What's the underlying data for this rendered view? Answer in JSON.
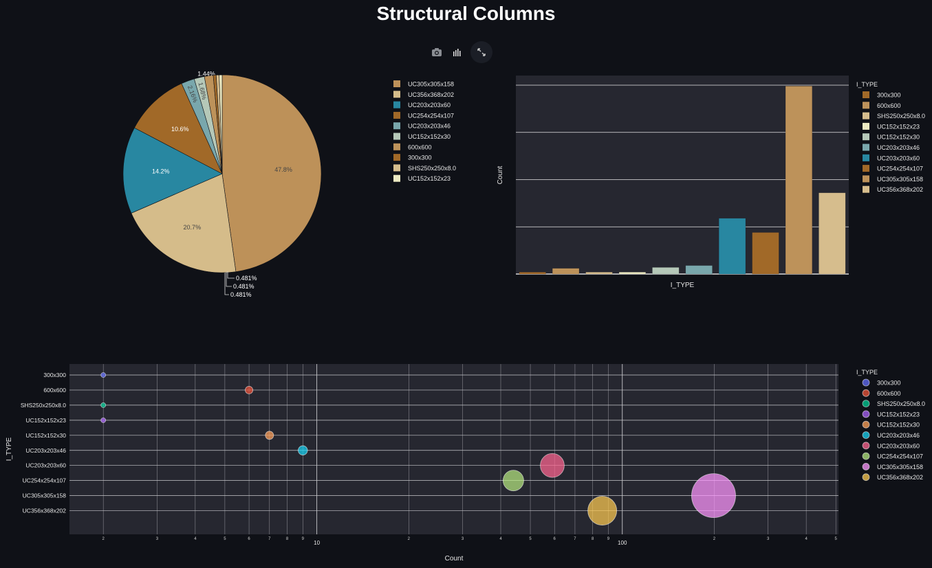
{
  "page": {
    "title": "Structural Columns"
  },
  "toolbar": {
    "icons": [
      "camera-icon",
      "bar-chart-icon",
      "fullscreen-icon"
    ]
  },
  "colors": {
    "background": "#0f1117",
    "plot_bg": "#262730",
    "grid": "#e6e6e6"
  },
  "chart_data": [
    {
      "type": "pie",
      "slices": [
        {
          "label": "UC305x305x158",
          "value": 47.8,
          "text": "47.8%",
          "color": "#bd9159"
        },
        {
          "label": "UC356x368x202",
          "value": 20.7,
          "text": "20.7%",
          "color": "#d5bc8a"
        },
        {
          "label": "UC203x203x60",
          "value": 14.2,
          "text": "14.2%",
          "color": "#2887a1"
        },
        {
          "label": "UC254x254x107",
          "value": 10.6,
          "text": "10.6%",
          "color": "#a16928"
        },
        {
          "label": "UC203x203x46",
          "value": 2.16,
          "text": "2.16%",
          "color": "#79a7ac"
        },
        {
          "label": "UC152x152x30",
          "value": 1.68,
          "text": "1.68%",
          "color": "#b5c8b8"
        },
        {
          "label": "600x600",
          "value": 1.44,
          "text": "1.44%",
          "color": "#bd925a"
        },
        {
          "label": "300x300",
          "value": 0.481,
          "text": "0.481%",
          "color": "#a16928"
        },
        {
          "label": "SHS250x250x8.0",
          "value": 0.481,
          "text": "0.481%",
          "color": "#d6bd8d"
        },
        {
          "label": "UC152x152x23",
          "value": 0.481,
          "text": "0.481%",
          "color": "#edeac2"
        }
      ],
      "legend": [
        "UC305x305x158",
        "UC356x368x202",
        "UC203x203x60",
        "UC254x254x107",
        "UC203x203x46",
        "UC152x152x30",
        "600x600",
        "300x300",
        "SHS250x250x8.0",
        "UC152x152x23"
      ]
    },
    {
      "type": "bar",
      "categories": [
        "300x300",
        "600x600",
        "SHS250x250x8.0",
        "UC152x152x23",
        "UC152x152x30",
        "UC203x203x46",
        "UC203x203x60",
        "UC254x254x107",
        "UC305x305x158",
        "UC356x368x202"
      ],
      "values": [
        2,
        6,
        2,
        2,
        7,
        9,
        59,
        44,
        199,
        86
      ],
      "colors": [
        "#a16928",
        "#bd925a",
        "#d6bd8d",
        "#edeac2",
        "#b5c8b8",
        "#79a7ac",
        "#2887a1",
        "#a16928",
        "#bd925a",
        "#d6bd8d"
      ],
      "xlabel": "I_TYPE",
      "ylabel": "Count",
      "legend_title": "I_TYPE",
      "ylim": [
        0,
        200
      ],
      "gridlines": [
        50,
        100,
        150,
        200
      ]
    },
    {
      "type": "scatter",
      "x_scale": "log",
      "xlabel": "Count",
      "ylabel": "I_TYPE",
      "legend_title": "I_TYPE",
      "xlim": [
        1.55,
        510
      ],
      "x_ticks_major": [
        {
          "v": 10,
          "label": "10"
        },
        {
          "v": 100,
          "label": "100"
        }
      ],
      "x_ticks_minor": [
        {
          "v": 2,
          "label": "2"
        },
        {
          "v": 3,
          "label": "3"
        },
        {
          "v": 4,
          "label": "4"
        },
        {
          "v": 5,
          "label": "5"
        },
        {
          "v": 6,
          "label": "6"
        },
        {
          "v": 7,
          "label": "7"
        },
        {
          "v": 8,
          "label": "8"
        },
        {
          "v": 9,
          "label": "9"
        },
        {
          "v": 20,
          "label": "2"
        },
        {
          "v": 30,
          "label": "3"
        },
        {
          "v": 40,
          "label": "4"
        },
        {
          "v": 50,
          "label": "5"
        },
        {
          "v": 60,
          "label": "6"
        },
        {
          "v": 70,
          "label": "7"
        },
        {
          "v": 80,
          "label": "8"
        },
        {
          "v": 90,
          "label": "9"
        },
        {
          "v": 200,
          "label": "2"
        },
        {
          "v": 300,
          "label": "3"
        },
        {
          "v": 400,
          "label": "4"
        },
        {
          "v": 500,
          "label": "5"
        }
      ],
      "categories": [
        "300x300",
        "600x600",
        "SHS250x250x8.0",
        "UC152x152x23",
        "UC152x152x30",
        "UC203x203x46",
        "UC203x203x60",
        "UC254x254x107",
        "UC305x305x158",
        "UC356x368x202"
      ],
      "points": [
        {
          "y": "300x300",
          "x": 2,
          "color": "#636efa"
        },
        {
          "y": "600x600",
          "x": 6,
          "color": "#ef553b"
        },
        {
          "y": "SHS250x250x8.0",
          "x": 2,
          "color": "#00cc96"
        },
        {
          "y": "UC152x152x23",
          "x": 2,
          "color": "#ab63fa"
        },
        {
          "y": "UC152x152x30",
          "x": 7,
          "color": "#ffa15a"
        },
        {
          "y": "UC203x203x46",
          "x": 9,
          "color": "#19d3f3"
        },
        {
          "y": "UC203x203x60",
          "x": 59,
          "color": "#ff6692"
        },
        {
          "y": "UC254x254x107",
          "x": 44,
          "color": "#b6e880"
        },
        {
          "y": "UC305x305x158",
          "x": 199,
          "color": "#ff97ff"
        },
        {
          "y": "UC356x368x202",
          "x": 86,
          "color": "#fecb52"
        }
      ]
    }
  ]
}
